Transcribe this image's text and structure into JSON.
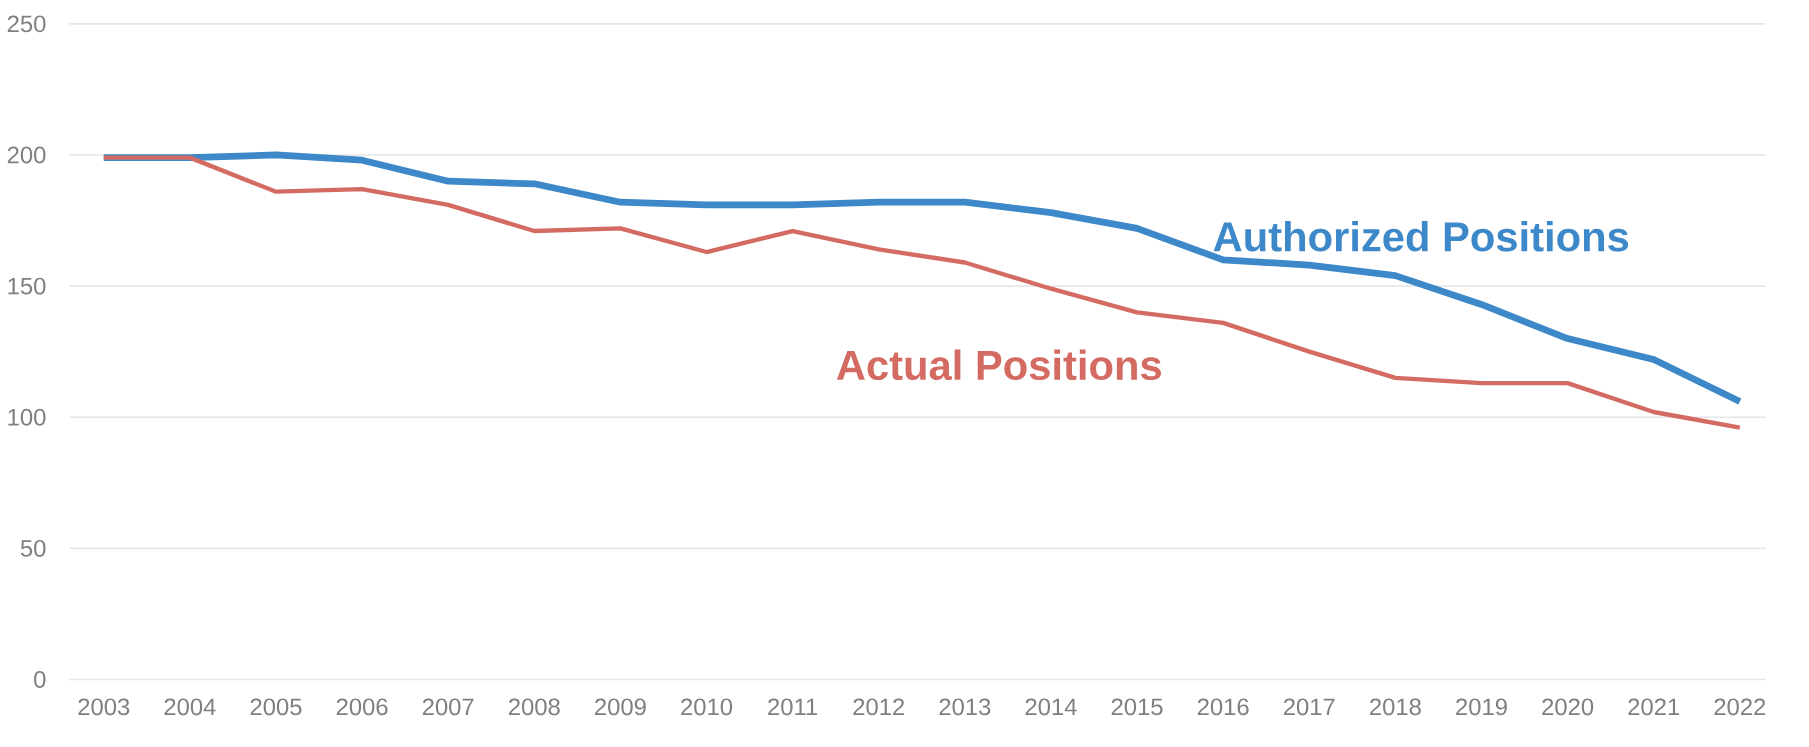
{
  "chart_data": {
    "type": "line",
    "categories": [
      "2003",
      "2004",
      "2005",
      "2006",
      "2007",
      "2008",
      "2009",
      "2010",
      "2011",
      "2012",
      "2013",
      "2014",
      "2015",
      "2016",
      "2017",
      "2018",
      "2019",
      "2020",
      "2021",
      "2022"
    ],
    "series": [
      {
        "name": "Authorized Positions",
        "color": "#3d88c9",
        "values": [
          199,
          199,
          200,
          198,
          190,
          189,
          182,
          181,
          181,
          182,
          182,
          178,
          172,
          160,
          158,
          154,
          143,
          130,
          122,
          106
        ]
      },
      {
        "name": "Actual Positions",
        "color": "#d46b63",
        "values": [
          199,
          199,
          186,
          187,
          181,
          171,
          172,
          163,
          171,
          164,
          159,
          149,
          140,
          136,
          125,
          115,
          113,
          113,
          102,
          96
        ]
      }
    ],
    "ylim": [
      0,
      250
    ],
    "yticks": [
      0,
      50,
      100,
      150,
      200,
      250
    ],
    "grid": "y",
    "legend": false,
    "marker": "none",
    "line_style": "solid"
  }
}
